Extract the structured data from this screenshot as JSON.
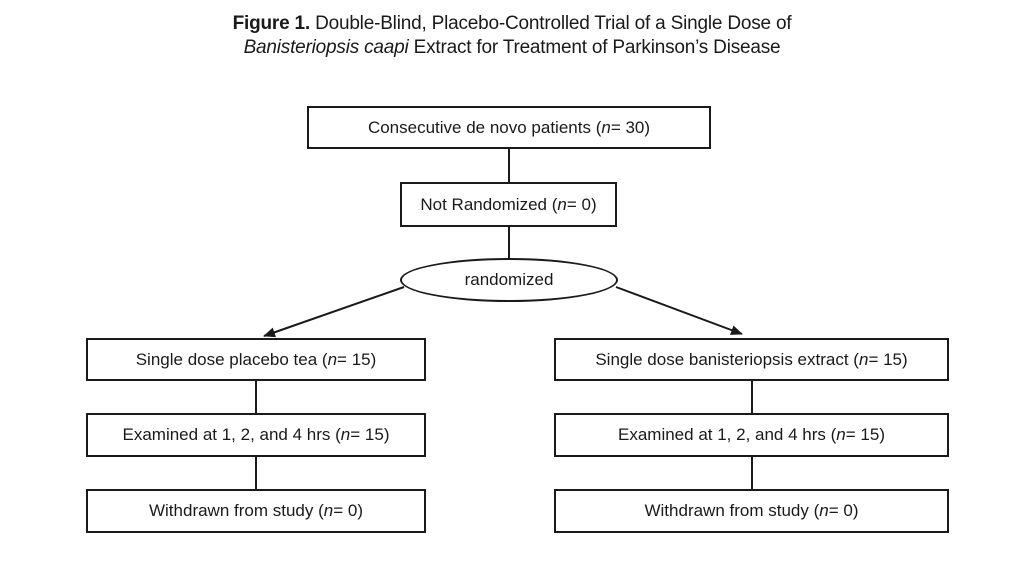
{
  "figure": {
    "label": "Figure 1.",
    "title_line1": "Double-Blind, Placebo-Controlled Trial of a Single Dose of",
    "title_line2_italic": "Banisteriopsis caapi",
    "title_line2_rest": " Extract for Treatment of Parkinson’s Disease"
  },
  "nodes": {
    "consecutive": {
      "text": "Consecutive de novo patients (",
      "var": "n",
      "value": " = 30)"
    },
    "not_randomized": {
      "text": "Not Randomized (",
      "var": "n",
      "value": " = 0)"
    },
    "randomized": {
      "text": "randomized"
    },
    "placebo": {
      "dose": {
        "text": "Single dose placebo tea (",
        "var": "n",
        "value": " = 15)"
      },
      "examined": {
        "text": "Examined at 1, 2, and 4 hrs (",
        "var": "n",
        "value": " = 15)"
      },
      "withdrawn": {
        "text": "Withdrawn from study (",
        "var": "n",
        "value": " = 0)"
      }
    },
    "extract": {
      "dose": {
        "text": "Single dose banisteriopsis extract (",
        "var": "n",
        "value": " = 15)"
      },
      "examined": {
        "text": "Examined at 1, 2, and 4 hrs (",
        "var": "n",
        "value": " = 15)"
      },
      "withdrawn": {
        "text": "Withdrawn from study (",
        "var": "n",
        "value": " = 0)"
      }
    }
  }
}
